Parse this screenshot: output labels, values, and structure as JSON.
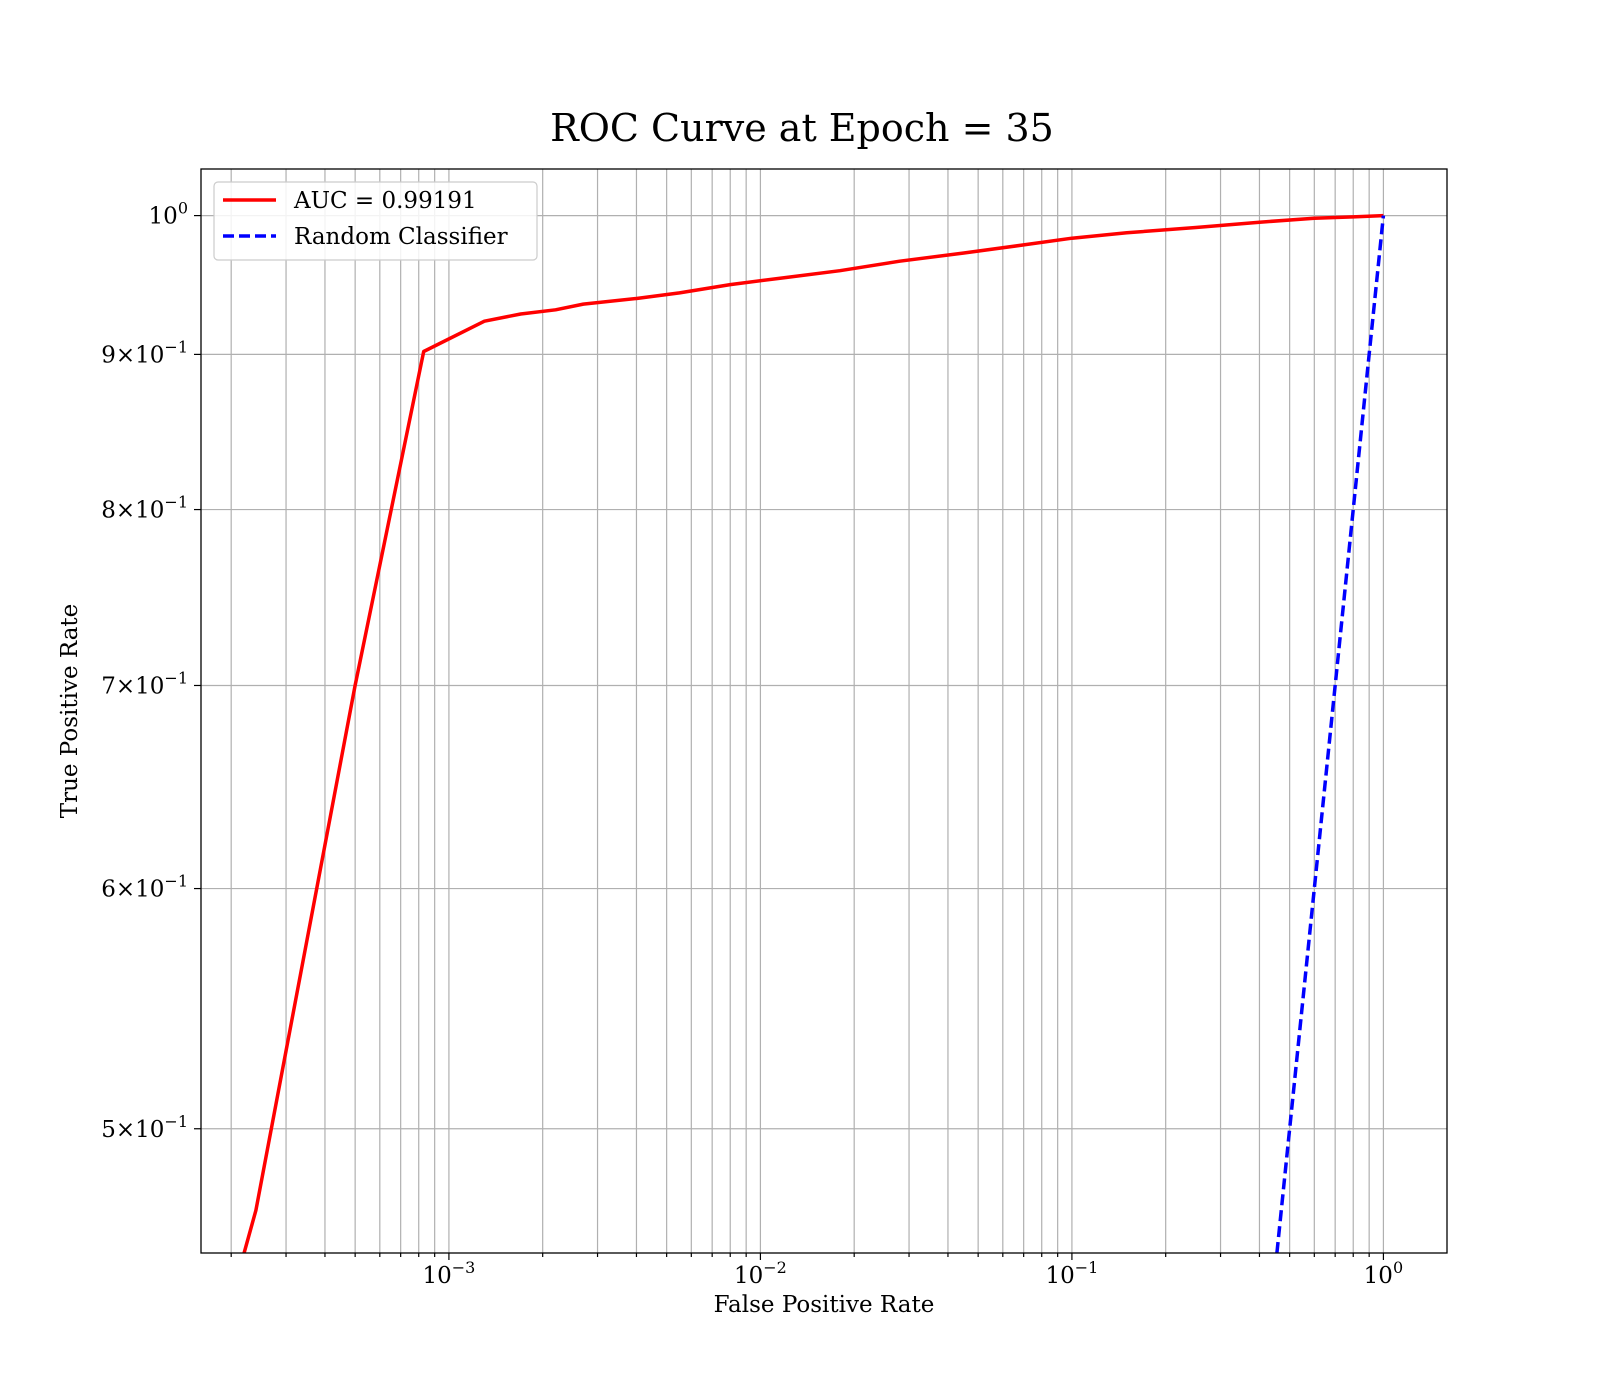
{
  "chart_data": {
    "type": "line",
    "title": "ROC Curve at Epoch = 35",
    "xlabel": "False Positive Rate",
    "ylabel": "True Positive Rate",
    "xscale": "log",
    "yscale": "log",
    "xlim": [
      0.00016,
      1.6
    ],
    "ylim": [
      0.455,
      1.036
    ],
    "grid": "both (major and minor)",
    "legend_position": "upper left",
    "x_ticks": [
      {
        "value": 0.001,
        "base": "10",
        "exp": "−3"
      },
      {
        "value": 0.01,
        "base": "10",
        "exp": "−2"
      },
      {
        "value": 0.1,
        "base": "10",
        "exp": "−1"
      },
      {
        "value": 1,
        "base": "10",
        "exp": "0"
      }
    ],
    "y_ticks": [
      {
        "value": 0.5,
        "mant": "5",
        "base": "10",
        "exp": "−1"
      },
      {
        "value": 0.6,
        "mant": "6",
        "base": "10",
        "exp": "−1"
      },
      {
        "value": 0.7,
        "mant": "7",
        "base": "10",
        "exp": "−1"
      },
      {
        "value": 0.8,
        "mant": "8",
        "base": "10",
        "exp": "−1"
      },
      {
        "value": 0.9,
        "mant": "9",
        "base": "10",
        "exp": "−1"
      },
      {
        "value": 1.0,
        "mant": "",
        "base": "10",
        "exp": "0"
      }
    ],
    "series": [
      {
        "name": "AUC = 0.99191",
        "color": "#ff0000",
        "style": "solid",
        "x": [
          0.00022,
          0.00024,
          0.0005,
          0.00083,
          0.0013,
          0.0017,
          0.0022,
          0.0027,
          0.004,
          0.0055,
          0.008,
          0.012,
          0.018,
          0.028,
          0.045,
          0.07,
          0.1,
          0.15,
          0.25,
          0.4,
          0.6,
          0.8,
          1.0
        ],
        "y": [
          0.455,
          0.47,
          0.7,
          0.902,
          0.923,
          0.928,
          0.931,
          0.935,
          0.939,
          0.943,
          0.949,
          0.954,
          0.959,
          0.966,
          0.972,
          0.978,
          0.983,
          0.987,
          0.991,
          0.995,
          0.998,
          0.999,
          1.0
        ]
      },
      {
        "name": "Random Classifier",
        "color": "#0000ff",
        "style": "dashed",
        "x": [
          0.455,
          1.0
        ],
        "y": [
          0.455,
          1.0
        ]
      }
    ]
  }
}
